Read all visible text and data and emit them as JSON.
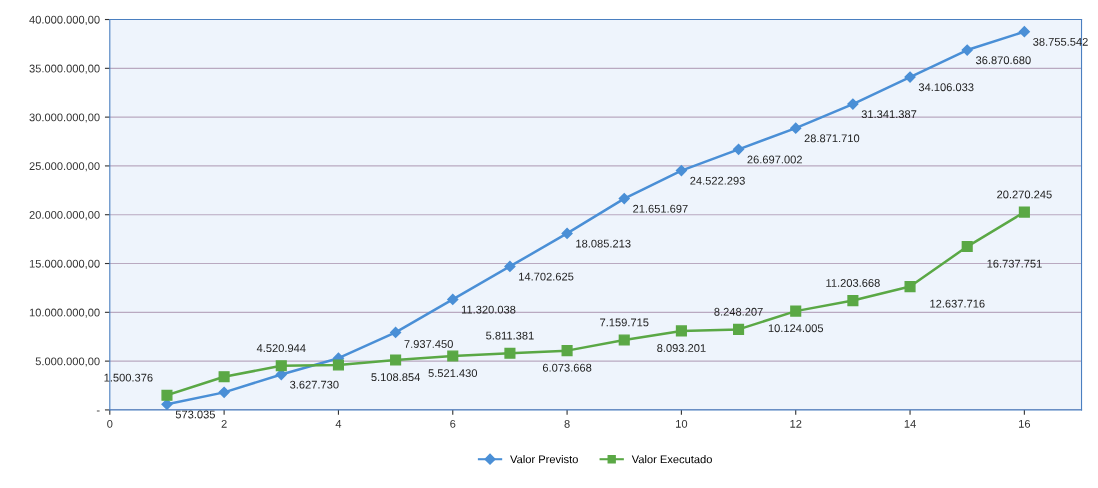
{
  "chart_data": {
    "type": "line",
    "x": [
      1,
      2,
      3,
      4,
      5,
      6,
      7,
      8,
      9,
      10,
      11,
      12,
      13,
      14,
      15,
      16
    ],
    "series": [
      {
        "name": "Valor Previsto",
        "color": "#4a8fd6",
        "marker": "diamond",
        "values": [
          573035,
          1800000,
          3627730,
          5300000,
          7937450,
          11320038,
          14702625,
          18085213,
          21651697,
          24522293,
          26697002,
          28871710,
          31341387,
          34106033,
          36870680,
          38755542
        ],
        "value_labels": [
          "573.035",
          null,
          "3.627.730",
          null,
          "7.937.450",
          "11.320.038",
          "14.702.625",
          "18.085.213",
          "21.651.697",
          "24.522.293",
          "26.697.002",
          "28.871.710",
          "31.341.387",
          "34.106.033",
          "36.870.680",
          "38.755.542"
        ]
      },
      {
        "name": "Valor Executado",
        "color": "#5aa845",
        "marker": "square",
        "values": [
          1500376,
          3400000,
          4520944,
          4600000,
          5108854,
          5521430,
          5811381,
          6073668,
          7159715,
          8093201,
          8248207,
          10124005,
          11203668,
          12637716,
          16737751,
          20270245
        ],
        "value_labels": [
          "1.500.376",
          null,
          "4.520.944",
          null,
          "5.108.854",
          "5.521.430",
          "5.811.381",
          "6.073.668",
          "7.159.715",
          "8.093.201",
          "8.248.207",
          "10.124.005",
          "11.203.668",
          "12.637.716",
          "16.737.751",
          "20.270.245"
        ]
      }
    ],
    "xlim": [
      0,
      17
    ],
    "xticks": [
      0,
      2,
      4,
      6,
      8,
      10,
      12,
      14,
      16
    ],
    "ylim": [
      0,
      40000000
    ],
    "yticks": [
      {
        "value": 0,
        "label": "-"
      },
      {
        "value": 5000000,
        "label": "5.000.000,00"
      },
      {
        "value": 10000000,
        "label": "10.000.000,00"
      },
      {
        "value": 15000000,
        "label": "15.000.000,00"
      },
      {
        "value": 20000000,
        "label": "20.000.000,00"
      },
      {
        "value": 25000000,
        "label": "25.000.000,00"
      },
      {
        "value": 30000000,
        "label": "30.000.000,00"
      },
      {
        "value": 35000000,
        "label": "35.000.000,00"
      },
      {
        "value": 40000000,
        "label": "40.000.000,00"
      }
    ],
    "grid": "y",
    "legend": "bottom"
  }
}
